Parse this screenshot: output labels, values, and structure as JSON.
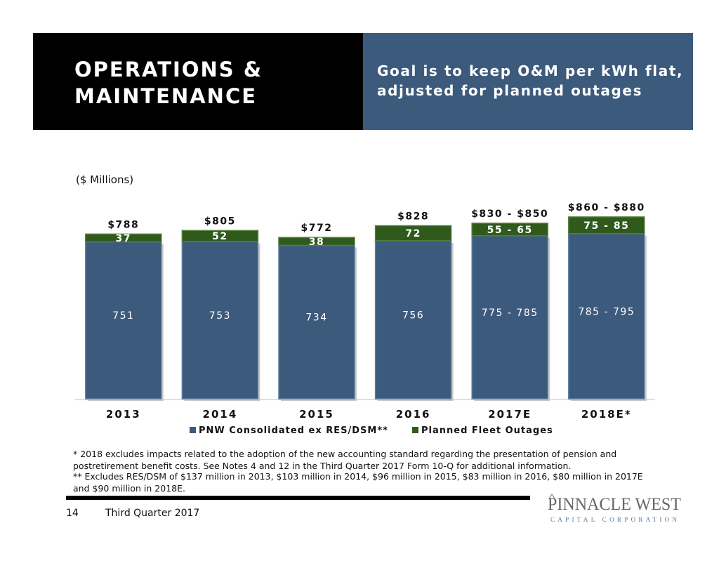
{
  "header": {
    "title_line1": "OPERATIONS &",
    "title_line2": "MAINTENANCE",
    "goal_line1": "Goal is to keep O&M per kWh flat,",
    "goal_line2": "adjusted for planned outages"
  },
  "units_label": "($ Millions)",
  "chart_data": {
    "type": "bar",
    "stacked": true,
    "categories": [
      "2013",
      "2014",
      "2015",
      "2016",
      "2017E",
      "2018E*"
    ],
    "series": [
      {
        "name": "PNW Consolidated ex RES/DSM**",
        "color": "#3c5a7c",
        "values": [
          751,
          753,
          734,
          756,
          780,
          790
        ],
        "labels": [
          "751",
          "753",
          "734",
          "756",
          "775 - 785",
          "785 - 795"
        ]
      },
      {
        "name": "Planned Fleet Outages",
        "color": "#2f5a1c",
        "values": [
          37,
          52,
          38,
          72,
          60,
          80
        ],
        "labels": [
          "37",
          "52",
          "38",
          "72",
          "55 - 65",
          "75 - 85"
        ]
      }
    ],
    "totals": [
      "$788",
      "$805",
      "$772",
      "$828",
      "$830 - $850",
      "$860 - $880"
    ],
    "ylim": [
      0,
      900
    ],
    "xlabel": "",
    "ylabel": "",
    "grid": false,
    "legend": "bottom"
  },
  "footnotes": {
    "note1": "* 2018 excludes impacts related to the adoption of the new accounting standard regarding the presentation of pension and postretirement benefit costs.  See Notes 4 and 12 in the Third Quarter 2017 Form 10-Q for additional information.",
    "note2": "** Excludes RES/DSM of $137 million in 2013, $103 million in 2014, $96 million in 2015, $83 million in 2016, $80 million in 2017E and $90 million in 2018E."
  },
  "footer": {
    "page_number": "14",
    "quarter": "Third Quarter 2017"
  },
  "logo": {
    "name": "PINNACLE WEST",
    "tagline": "CAPITAL CORPORATION"
  }
}
